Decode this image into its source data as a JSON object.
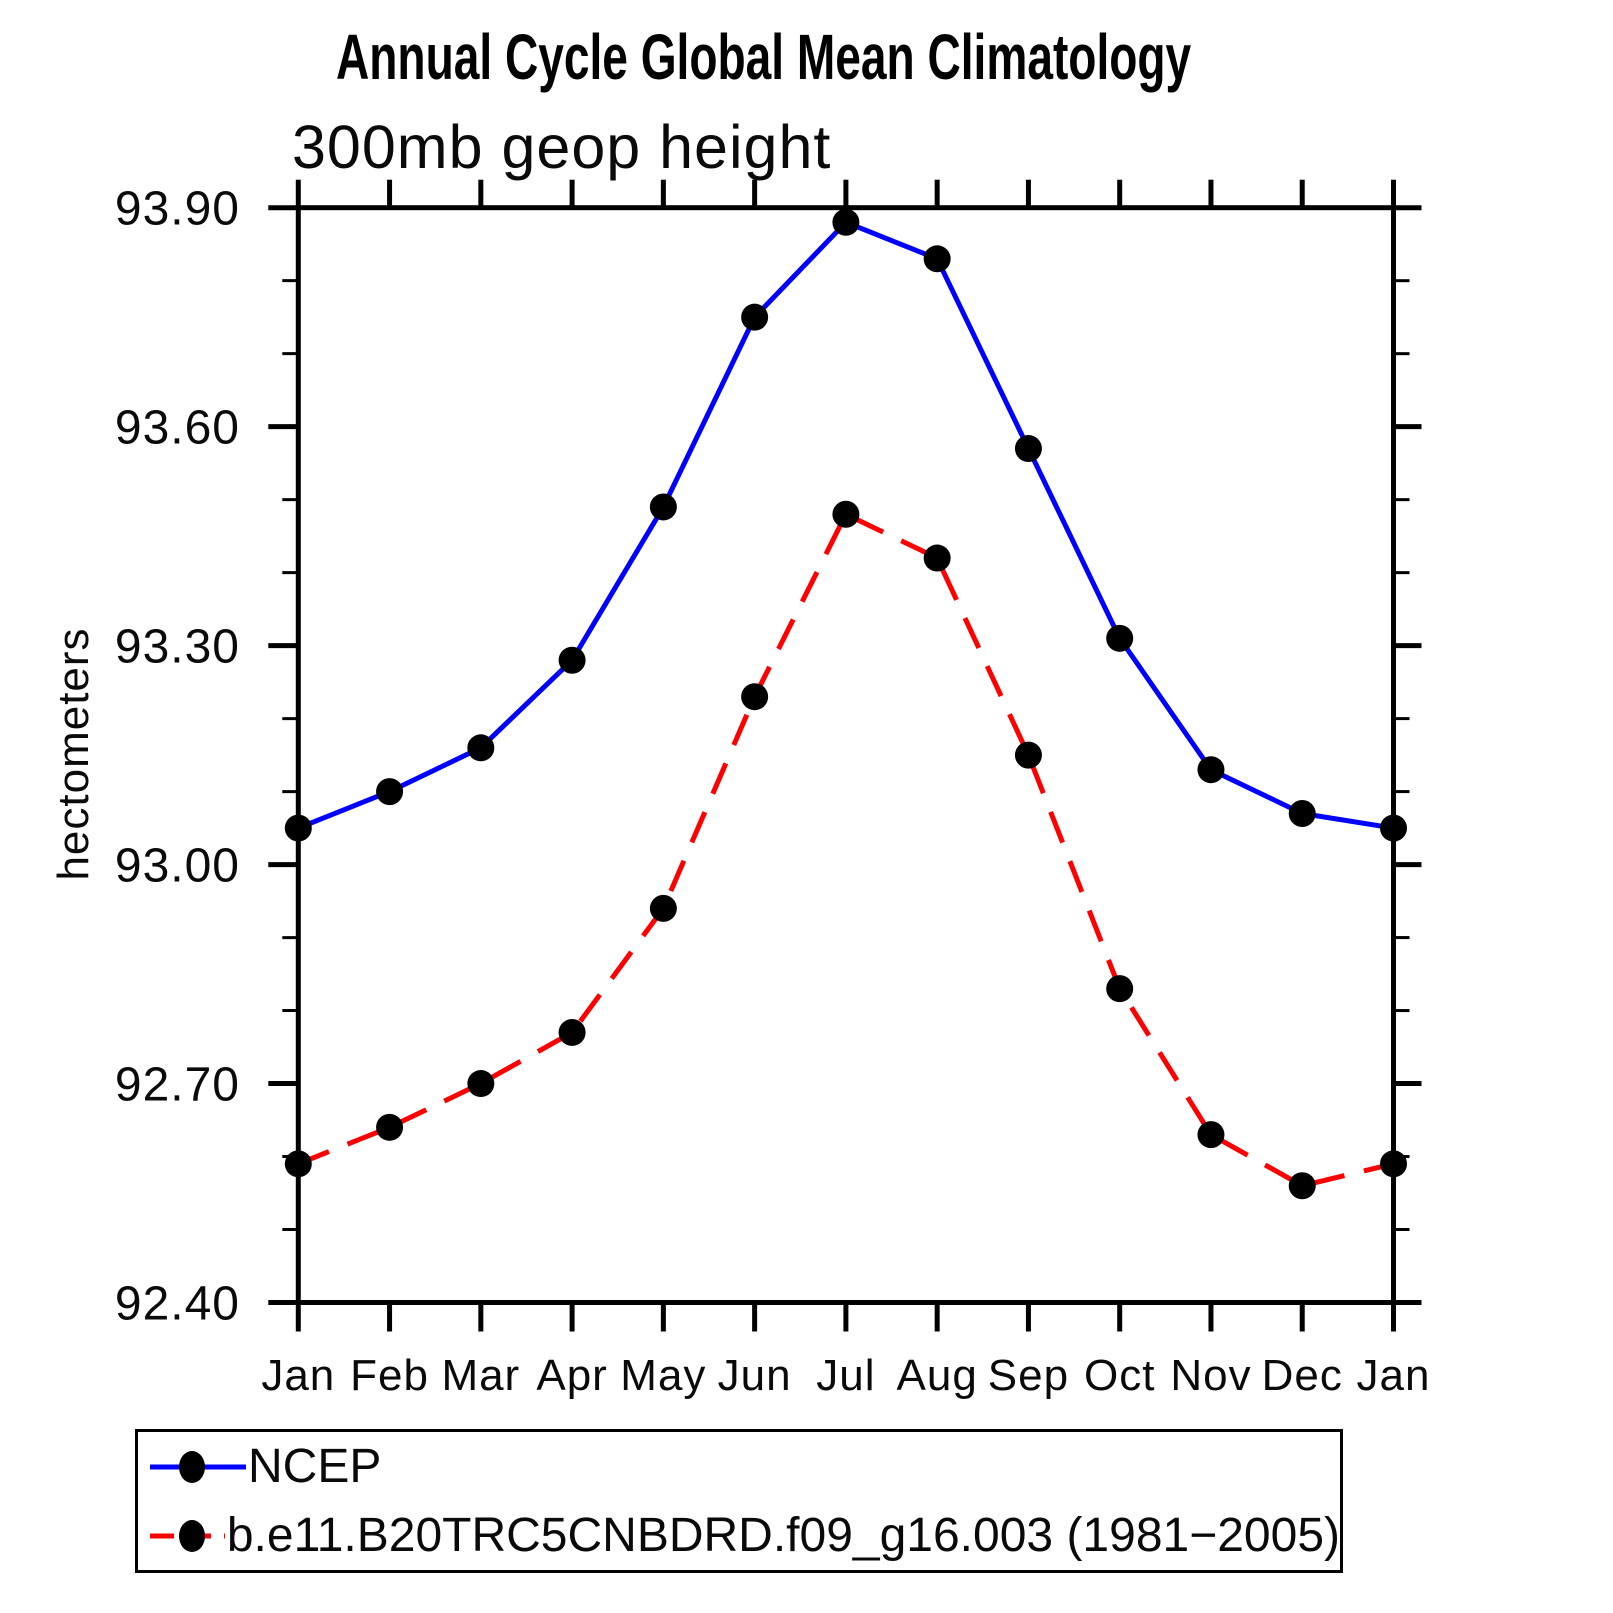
{
  "chart_data": {
    "type": "line",
    "title": "Annual Cycle Global Mean Climatology",
    "subtitle": "300mb geop height",
    "ylabel": "hectometers",
    "xlabel": "",
    "x_categories": [
      "Jan",
      "Feb",
      "Mar",
      "Apr",
      "May",
      "Jun",
      "Jul",
      "Aug",
      "Sep",
      "Oct",
      "Nov",
      "Dec",
      "Jan"
    ],
    "ylim": [
      92.4,
      93.9
    ],
    "grid": false,
    "legend_position": "bottom-left-box",
    "axis_color": "#000000",
    "marker_color": "#000000",
    "y_major_ticks": [
      {
        "value": 93.9,
        "label": "93.90"
      },
      {
        "value": 93.6,
        "label": "93.60"
      },
      {
        "value": 93.3,
        "label": "93.30"
      },
      {
        "value": 93.0,
        "label": "93.00"
      },
      {
        "value": 92.7,
        "label": "92.70"
      },
      {
        "value": 92.4,
        "label": "92.40"
      }
    ],
    "y_minor_tick_values": [
      92.5,
      92.6,
      92.8,
      92.9,
      93.1,
      93.2,
      93.4,
      93.5,
      93.7,
      93.8
    ],
    "series": [
      {
        "name": "NCEP",
        "color": "#0000ff",
        "line_style": "solid",
        "marker": "filled-circle",
        "marker_color": "#000000",
        "values": [
          93.05,
          93.1,
          93.16,
          93.28,
          93.49,
          93.75,
          93.88,
          93.83,
          93.57,
          93.31,
          93.13,
          93.07,
          93.05
        ]
      },
      {
        "name": "b.e11.B20TRC5CNBDRD.f09_g16.003 (1981−2005)",
        "color": "#ff0000",
        "line_style": "dashed",
        "marker": "filled-circle",
        "marker_color": "#000000",
        "values": [
          92.59,
          92.64,
          92.7,
          92.77,
          92.94,
          93.23,
          93.48,
          93.42,
          93.15,
          92.83,
          92.63,
          92.56,
          92.59
        ]
      }
    ]
  }
}
